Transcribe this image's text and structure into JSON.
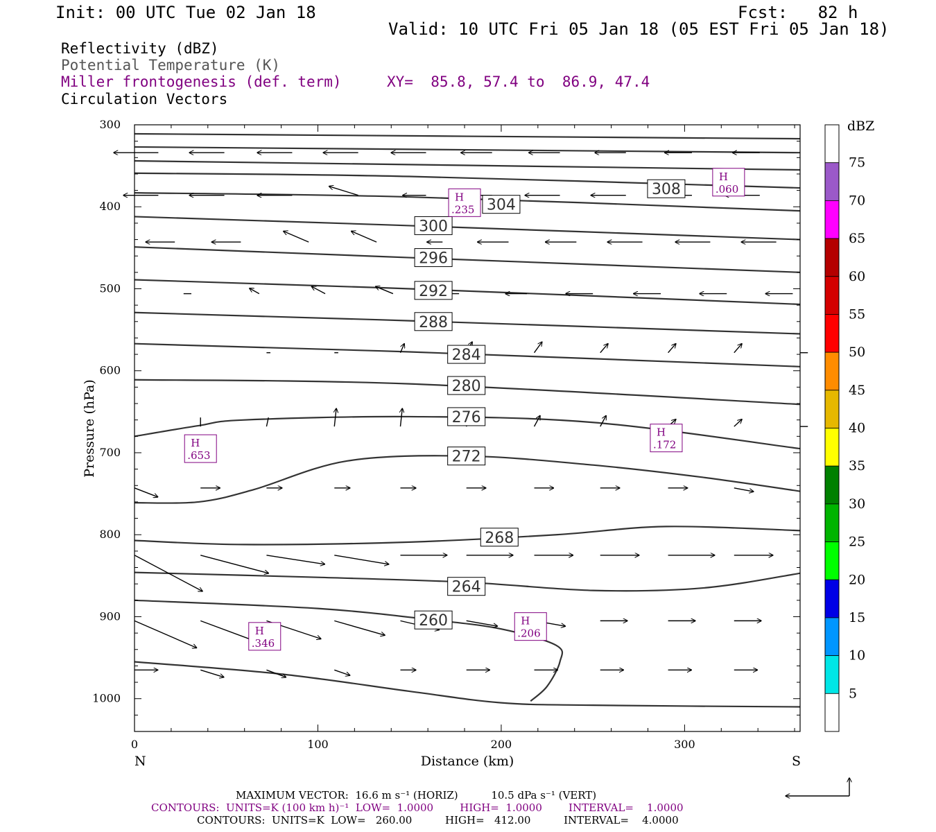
{
  "header": {
    "init": "Init: 00 UTC Tue 02 Jan 18",
    "fcst": "Fcst:   82 h",
    "valid": "Valid: 10 UTC Fri 05 Jan 18 (05 EST Fri 05 Jan 18)"
  },
  "fields": {
    "reflectivity": "Reflectivity (dBZ)",
    "theta": "Potential Temperature (K)",
    "frontogenesis": "Miller frontogenesis (def. term)",
    "vectors": "Circulation Vectors",
    "xy": "XY=  85.8, 57.4 to  86.9, 47.4"
  },
  "footer": {
    "max_vector": "MAXIMUM VECTOR:  16.6 m s⁻¹ (HORIZ)          10.5 dPa s⁻¹ (VERT)",
    "contours_fronto": "CONTOURS:  UNITS=K (100 km h)⁻¹  LOW=  1.0000        HIGH=  1.0000        INTERVAL=    1.0000",
    "contours_theta": "CONTOURS:  UNITS=K  LOW=   260.00          HIGH=   412.00          INTERVAL=    4.0000"
  },
  "colors": {
    "theta": "#333333",
    "fronto": "#800080",
    "vectors": "#000000"
  },
  "chart_data": {
    "type": "cross-section",
    "xlabel": "Distance (km)",
    "ylabel": "Pressure (hPa)",
    "xlim": [
      0,
      363
    ],
    "ylim": [
      1040,
      300
    ],
    "x_ticks": [
      0,
      100,
      200,
      300
    ],
    "y_ticks": [
      300,
      400,
      500,
      600,
      700,
      800,
      900,
      1000
    ],
    "x_end_labels": {
      "left": "N",
      "right": "S"
    },
    "colorbar": {
      "unit": "dBZ",
      "labels": [
        "75",
        "70",
        "65",
        "60",
        "55",
        "50",
        "45",
        "40",
        "35",
        "30",
        "25",
        "20",
        "15",
        "10",
        "5"
      ],
      "segments": [
        {
          "top": 80,
          "bottom": 75,
          "color": "#ffffff"
        },
        {
          "top": 75,
          "bottom": 70,
          "color": "#9b59c9"
        },
        {
          "top": 70,
          "bottom": 65,
          "color": "#ff00ff"
        },
        {
          "top": 65,
          "bottom": 60,
          "color": "#b40000"
        },
        {
          "top": 60,
          "bottom": 55,
          "color": "#d40000"
        },
        {
          "top": 55,
          "bottom": 50,
          "color": "#ff0000"
        },
        {
          "top": 50,
          "bottom": 45,
          "color": "#ff8c00"
        },
        {
          "top": 45,
          "bottom": 40,
          "color": "#e6b800"
        },
        {
          "top": 40,
          "bottom": 35,
          "color": "#ffff00"
        },
        {
          "top": 35,
          "bottom": 30,
          "color": "#008000"
        },
        {
          "top": 30,
          "bottom": 25,
          "color": "#00b400"
        },
        {
          "top": 25,
          "bottom": 20,
          "color": "#00ff00"
        },
        {
          "top": 20,
          "bottom": 15,
          "color": "#0000e6"
        },
        {
          "top": 15,
          "bottom": 10,
          "color": "#0096ff"
        },
        {
          "top": 10,
          "bottom": 5,
          "color": "#00e6e6"
        },
        {
          "top": 5,
          "bottom": 0,
          "color": "#ffffff"
        }
      ]
    },
    "isentropes": [
      {
        "points": [
          [
            0,
            311
          ],
          [
            363,
            317
          ]
        ]
      },
      {
        "points": [
          [
            0,
            327
          ],
          [
            363,
            334
          ]
        ]
      },
      {
        "label": "308",
        "label_at": [
          290,
          378
        ],
        "points": [
          [
            0,
            344
          ],
          [
            363,
            355
          ]
        ]
      },
      {
        "points": [
          [
            0,
            359
          ],
          [
            150,
            363
          ],
          [
            363,
            377
          ]
        ]
      },
      {
        "label": "304",
        "label_at": [
          200,
          397
        ],
        "points": [
          [
            0,
            383
          ],
          [
            150,
            388
          ],
          [
            363,
            405
          ]
        ]
      },
      {
        "label": "300",
        "label_at": [
          163,
          423
        ],
        "points": [
          [
            0,
            412
          ],
          [
            150,
            423
          ],
          [
            363,
            440
          ]
        ]
      },
      {
        "label": "296",
        "label_at": [
          163,
          462
        ],
        "points": [
          [
            0,
            449
          ],
          [
            150,
            462
          ],
          [
            363,
            480
          ]
        ]
      },
      {
        "label": "292",
        "label_at": [
          163,
          502
        ],
        "points": [
          [
            0,
            489
          ],
          [
            150,
            500
          ],
          [
            363,
            519
          ]
        ]
      },
      {
        "label": "288",
        "label_at": [
          163,
          540
        ],
        "points": [
          [
            0,
            529
          ],
          [
            150,
            539
          ],
          [
            363,
            555
          ]
        ]
      },
      {
        "label": "284",
        "label_at": [
          181,
          580
        ],
        "points": [
          [
            0,
            567
          ],
          [
            150,
            577
          ],
          [
            363,
            595
          ]
        ]
      },
      {
        "label": "280",
        "label_at": [
          181,
          618
        ],
        "points": [
          [
            0,
            611
          ],
          [
            150,
            616
          ],
          [
            363,
            641
          ]
        ]
      },
      {
        "label": "276",
        "label_at": [
          181,
          656
        ],
        "points": [
          [
            0,
            680
          ],
          [
            35,
            667
          ],
          [
            60,
            660
          ],
          [
            150,
            656
          ],
          [
            250,
            663
          ],
          [
            363,
            695
          ]
        ]
      },
      {
        "label": "272",
        "label_at": [
          181,
          704
        ],
        "points": [
          [
            0,
            761
          ],
          [
            35,
            760
          ],
          [
            65,
            745
          ],
          [
            116,
            710
          ],
          [
            181,
            704
          ],
          [
            250,
            715
          ],
          [
            310,
            730
          ],
          [
            363,
            747
          ]
        ]
      },
      {
        "label": "268",
        "label_at": [
          199,
          803
        ],
        "points": [
          [
            0,
            807
          ],
          [
            60,
            812
          ],
          [
            150,
            809
          ],
          [
            230,
            800
          ],
          [
            290,
            790
          ],
          [
            363,
            795
          ]
        ]
      },
      {
        "label": "264",
        "label_at": [
          181,
          863
        ],
        "points": [
          [
            0,
            846
          ],
          [
            100,
            852
          ],
          [
            181,
            858
          ],
          [
            250,
            868
          ],
          [
            310,
            865
          ],
          [
            363,
            847
          ]
        ]
      },
      {
        "label": "260",
        "label_at": [
          163,
          904
        ],
        "points": [
          [
            0,
            880
          ],
          [
            100,
            890
          ],
          [
            163,
            904
          ],
          [
            200,
            915
          ],
          [
            230,
            935
          ],
          [
            232,
            955
          ],
          [
            225,
            985
          ],
          [
            216,
            1003
          ]
        ]
      },
      {
        "points": [
          [
            0,
            955
          ],
          [
            80,
            970
          ],
          [
            150,
            991
          ],
          [
            200,
            1005
          ],
          [
            250,
            1008
          ],
          [
            363,
            1010
          ]
        ]
      }
    ],
    "fronto_highs": [
      {
        "label": "H",
        "value": ".060",
        "at": [
          324,
          370
        ]
      },
      {
        "label": "H",
        "value": ".235",
        "at": [
          180,
          395
        ]
      },
      {
        "label": "H",
        "value": ".653",
        "at": [
          36,
          695
        ]
      },
      {
        "label": "H",
        "value": ".172",
        "at": [
          290,
          682
        ]
      },
      {
        "label": "H",
        "value": ".206",
        "at": [
          216,
          912
        ]
      },
      {
        "label": "H",
        "value": ".346",
        "at": [
          71,
          924
        ]
      }
    ],
    "vectors": [
      {
        "x": [
          13,
          49,
          86,
          122,
          159,
          195,
          232,
          268,
          304,
          341
        ],
        "p": 334,
        "u": [
          -2.3,
          -1.8,
          -1.8,
          -1.8,
          -1.8,
          -1.6,
          -1.6,
          -1.6,
          -1.4,
          -1.4
        ],
        "w": [
          0,
          0,
          0,
          0,
          0,
          0,
          0,
          0,
          0,
          0
        ]
      },
      {
        "x": [
          13,
          49,
          86,
          122,
          159,
          195,
          232,
          268,
          304,
          341
        ],
        "p": 386,
        "u": [
          -1.8,
          -1.8,
          -1.8,
          -1.5,
          -1.2,
          -1.5,
          -1.8,
          -1.8,
          -1.8,
          -1.8
        ],
        "w": [
          0,
          0,
          0,
          0.05,
          0,
          0,
          0,
          0,
          0,
          0
        ]
      },
      {
        "x": [
          22,
          58,
          95,
          132,
          168,
          204,
          241,
          277,
          314,
          350
        ],
        "p": 443,
        "u": [
          -1.5,
          -1.5,
          -1.3,
          -1.3,
          -0.8,
          -1.6,
          -1.6,
          -1.8,
          -1.8,
          -1.8
        ],
        "w": [
          0,
          0,
          0.06,
          0.06,
          0,
          0,
          0,
          0,
          0,
          0
        ]
      },
      {
        "x": [
          31,
          68,
          104,
          141,
          177,
          214,
          250,
          287,
          323,
          359
        ],
        "p": 506,
        "u": [
          -0.4,
          -0.5,
          -0.7,
          -0.9,
          -1.0,
          -1.1,
          -1.4,
          -1.4,
          -1.4,
          -1.4
        ],
        "w": [
          0,
          0.03,
          0.04,
          0.04,
          0,
          0,
          0,
          0,
          0,
          0
        ]
      },
      {
        "x": [
          36,
          72,
          109,
          145,
          181,
          218,
          254,
          291,
          327,
          363
        ],
        "p": 578,
        "u": [
          0.1,
          0.2,
          0.2,
          0.2,
          0.3,
          0.4,
          0.4,
          0.4,
          0.4,
          0.4
        ],
        "w": [
          0,
          0,
          0,
          0.05,
          0.06,
          0.06,
          0.05,
          0.05,
          0.05,
          0
        ]
      },
      {
        "x": [
          36,
          72,
          109,
          145,
          181,
          218,
          254,
          291,
          327,
          363
        ],
        "p": 668,
        "u": [
          0,
          0.1,
          0.1,
          0.1,
          0.2,
          0.3,
          0.3,
          0.4,
          0.4,
          0.4
        ],
        "w": [
          0.05,
          0.05,
          0.1,
          0.1,
          0.08,
          0.06,
          0.06,
          0.04,
          0.04,
          0
        ]
      },
      {
        "x": [
          0,
          36,
          72,
          109,
          145,
          181,
          218,
          254,
          291,
          327
        ],
        "p": 743,
        "u": [
          1.2,
          1.0,
          0.8,
          0.8,
          0.8,
          1.0,
          1.0,
          1.0,
          1.0,
          1.0
        ],
        "w": [
          -0.05,
          0,
          0,
          0,
          0,
          0,
          0,
          0,
          0,
          -0.02
        ]
      },
      {
        "x": [
          0,
          36,
          72,
          109,
          145,
          181,
          218,
          254,
          291,
          327
        ],
        "p": 825,
        "u": [
          3.5,
          3.5,
          3.0,
          2.8,
          2.4,
          2.4,
          2.0,
          2.0,
          2.4,
          2.0
        ],
        "w": [
          -0.2,
          -0.1,
          -0.05,
          -0.05,
          0,
          0,
          0,
          0,
          0,
          0
        ]
      },
      {
        "x": [
          0,
          36,
          72,
          109,
          145,
          181,
          218,
          254,
          291,
          327
        ],
        "p": 905,
        "u": [
          3.2,
          3.0,
          2.8,
          2.6,
          2.0,
          1.6,
          1.6,
          1.4,
          1.4,
          1.4
        ],
        "w": [
          -0.15,
          -0.12,
          -0.1,
          -0.08,
          -0.05,
          -0.03,
          -0.03,
          0,
          0,
          0
        ]
      },
      {
        "x": [
          0,
          36,
          72,
          109,
          145,
          181,
          218,
          254,
          291,
          327
        ],
        "p": 965,
        "u": [
          1.2,
          1.2,
          1.0,
          0.8,
          0.8,
          1.2,
          1.2,
          1.2,
          1.2,
          1.2
        ],
        "w": [
          0,
          -0.04,
          -0.04,
          -0.03,
          0,
          0,
          0,
          0,
          0,
          0
        ]
      }
    ],
    "reference_vector_label": ""
  }
}
